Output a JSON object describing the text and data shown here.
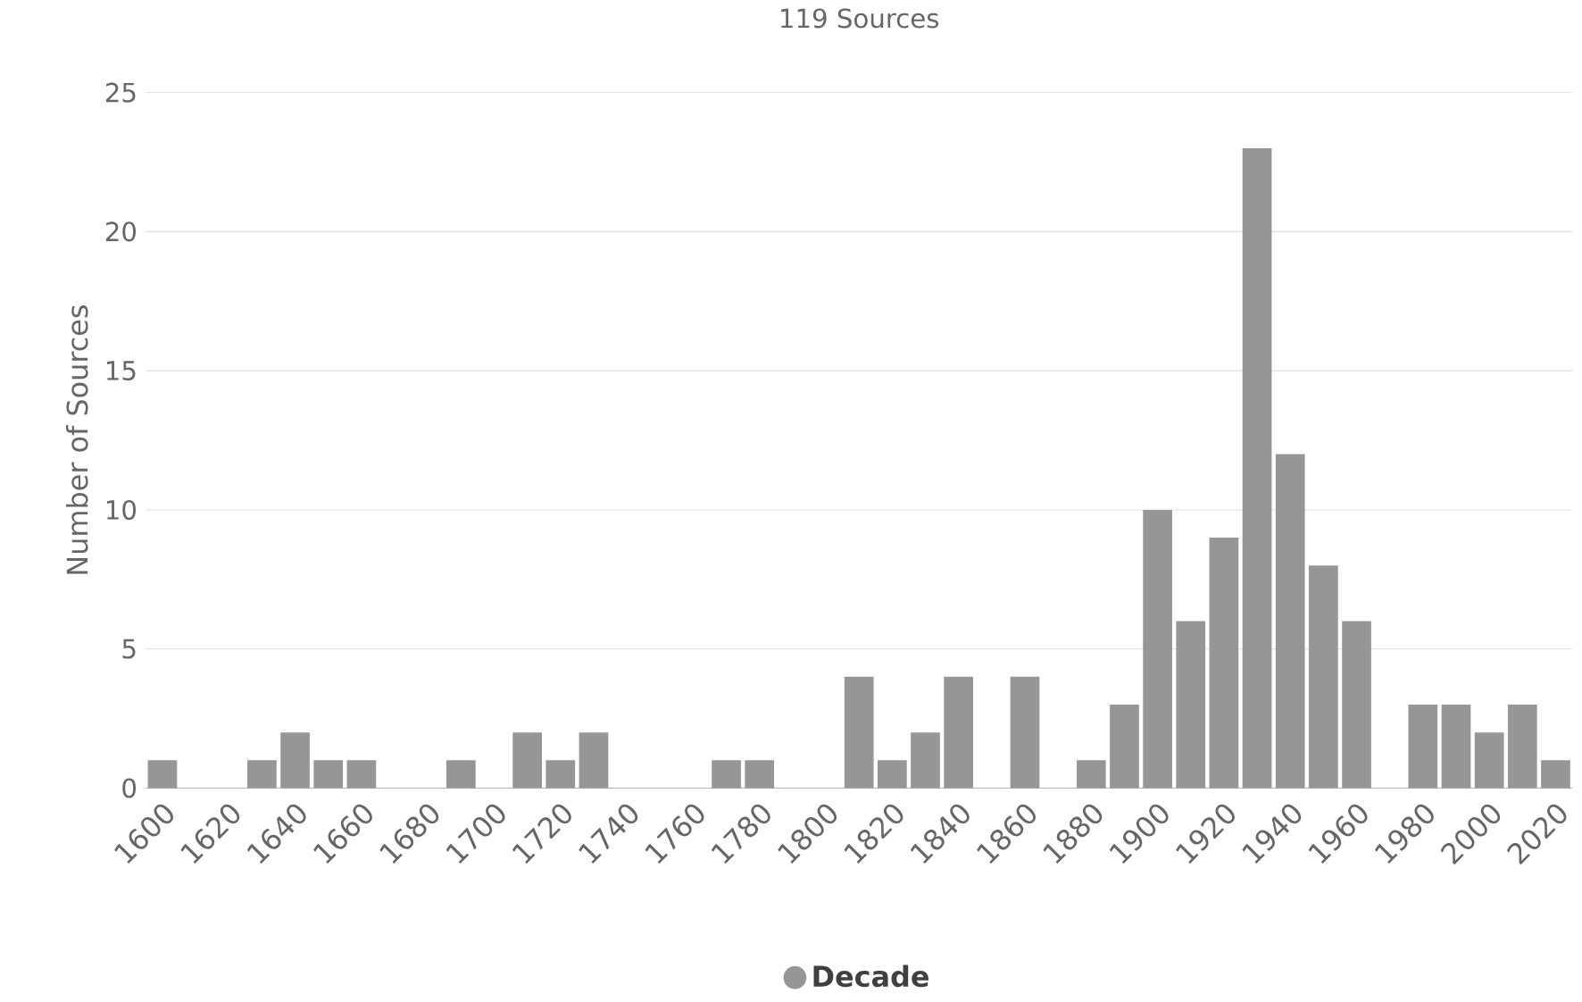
{
  "chart_data": {
    "type": "bar",
    "title": "119 Sources",
    "ylabel": "Number of Sources",
    "categories": [
      "1600",
      null,
      "1620",
      null,
      "1640",
      null,
      "1660",
      null,
      "1680",
      null,
      "1700",
      null,
      "1720",
      null,
      "1740",
      null,
      "1760",
      null,
      "1780",
      null,
      "1800",
      null,
      "1820",
      null,
      "1840",
      null,
      "1860",
      null,
      "1880",
      null,
      "1900",
      null,
      "1920",
      null,
      "1940",
      null,
      "1960",
      null,
      "1980",
      null,
      "2000",
      null,
      "2020"
    ],
    "series": [
      {
        "name": "Decade",
        "color": "#969696",
        "values": [
          1,
          0,
          0,
          1,
          2,
          1,
          1,
          0,
          0,
          1,
          0,
          2,
          1,
          2,
          0,
          0,
          0,
          1,
          1,
          0,
          0,
          4,
          1,
          2,
          4,
          0,
          4,
          0,
          1,
          3,
          10,
          6,
          9,
          23,
          12,
          8,
          6,
          0,
          3,
          3,
          2,
          3,
          1
        ]
      }
    ],
    "ylim": [
      0,
      25
    ],
    "yticks": [
      0,
      5,
      10,
      15,
      20,
      25
    ],
    "grid": "y",
    "legend": "bottom"
  }
}
